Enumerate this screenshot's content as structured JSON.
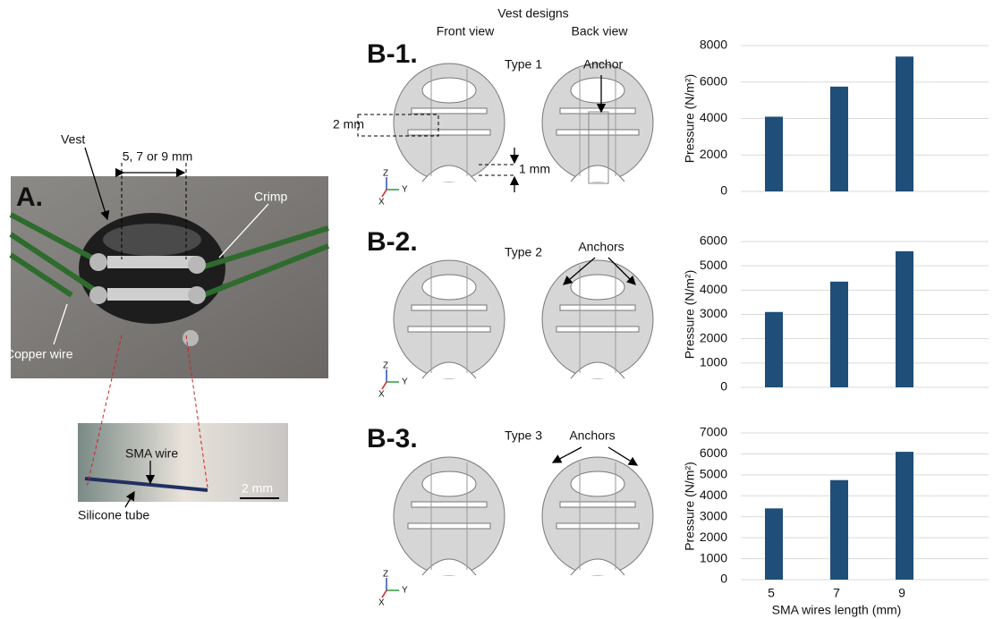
{
  "panel_a": {
    "label": "A.",
    "vest": "Vest",
    "spacing": "5, 7 or 9 mm",
    "crimp": "Crimp",
    "copper_wire": "Copper wire",
    "sma_wire": "SMA wire",
    "silicone_tube": "Silicone tube",
    "scale_bar": "2 mm"
  },
  "panel_b": {
    "title": "Vest designs",
    "front_view": "Front view",
    "back_view": "Back view",
    "axes_labels": {
      "z": "Z",
      "y": "Y",
      "x": "X"
    },
    "rows": [
      {
        "label": "B-1.",
        "type": "Type 1",
        "anchor": "Anchor",
        "dim_1": "2 mm",
        "dim_2": "1 mm"
      },
      {
        "label": "B-2.",
        "type": "Type 2",
        "anchor": "Anchors"
      },
      {
        "label": "B-3.",
        "type": "Type 3",
        "anchor": "Anchors"
      }
    ]
  },
  "chart_data": [
    {
      "type": "bar",
      "ylabel": "Pressure (N/m²)",
      "categories": [
        null,
        null,
        null
      ],
      "values": [
        4100,
        5750,
        7400
      ],
      "color": "#1f4e79",
      "ylim": [
        0,
        8000
      ],
      "yticks": [
        0,
        2000,
        4000,
        6000,
        8000
      ],
      "grid": true
    },
    {
      "type": "bar",
      "ylabel": "Pressure (N/m²)",
      "categories": [
        null,
        null,
        null
      ],
      "values": [
        3100,
        4350,
        5600
      ],
      "color": "#1f4e79",
      "ylim": [
        0,
        6000
      ],
      "yticks": [
        0,
        1000,
        2000,
        3000,
        4000,
        5000,
        6000
      ],
      "grid": true
    },
    {
      "type": "bar",
      "ylabel": "Pressure (N/m²)",
      "xlabel": "SMA wires length (mm)",
      "categories": [
        "5",
        "7",
        "9"
      ],
      "values": [
        3400,
        4750,
        6100
      ],
      "color": "#1f4e79",
      "ylim": [
        0,
        7000
      ],
      "yticks": [
        0,
        1000,
        2000,
        3000,
        4000,
        5000,
        6000,
        7000
      ],
      "grid": true
    }
  ]
}
